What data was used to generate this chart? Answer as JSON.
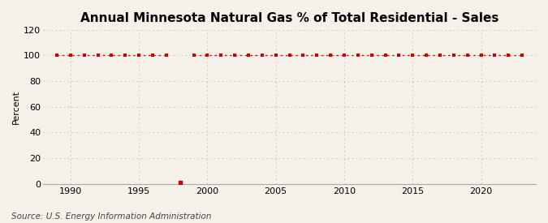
{
  "title": "Annual Minnesota Natural Gas % of Total Residential - Sales",
  "ylabel": "Percent",
  "source_text": "Source: U.S. Energy Information Administration",
  "background_color": "#f5f0e8",
  "line_color": "#cc0000",
  "grid_color": "#bbbbbb",
  "xlim": [
    1988,
    2024
  ],
  "ylim": [
    0,
    120
  ],
  "yticks": [
    0,
    20,
    40,
    60,
    80,
    100,
    120
  ],
  "xticks": [
    1990,
    1995,
    2000,
    2005,
    2010,
    2015,
    2020
  ],
  "years": [
    1989,
    1990,
    1991,
    1992,
    1993,
    1994,
    1995,
    1996,
    1997,
    1998,
    1999,
    2000,
    2001,
    2002,
    2003,
    2004,
    2005,
    2006,
    2007,
    2008,
    2009,
    2010,
    2011,
    2012,
    2013,
    2014,
    2015,
    2016,
    2017,
    2018,
    2019,
    2020,
    2021,
    2022,
    2023
  ],
  "values": [
    100,
    100,
    100,
    100,
    100,
    100,
    100,
    100,
    100,
    1,
    100,
    100,
    100,
    100,
    100,
    100,
    100,
    100,
    100,
    100,
    100,
    100,
    100,
    100,
    100,
    100,
    100,
    100,
    100,
    100,
    100,
    100,
    100,
    100,
    100
  ],
  "title_fontsize": 11,
  "axis_fontsize": 8,
  "source_fontsize": 7.5
}
